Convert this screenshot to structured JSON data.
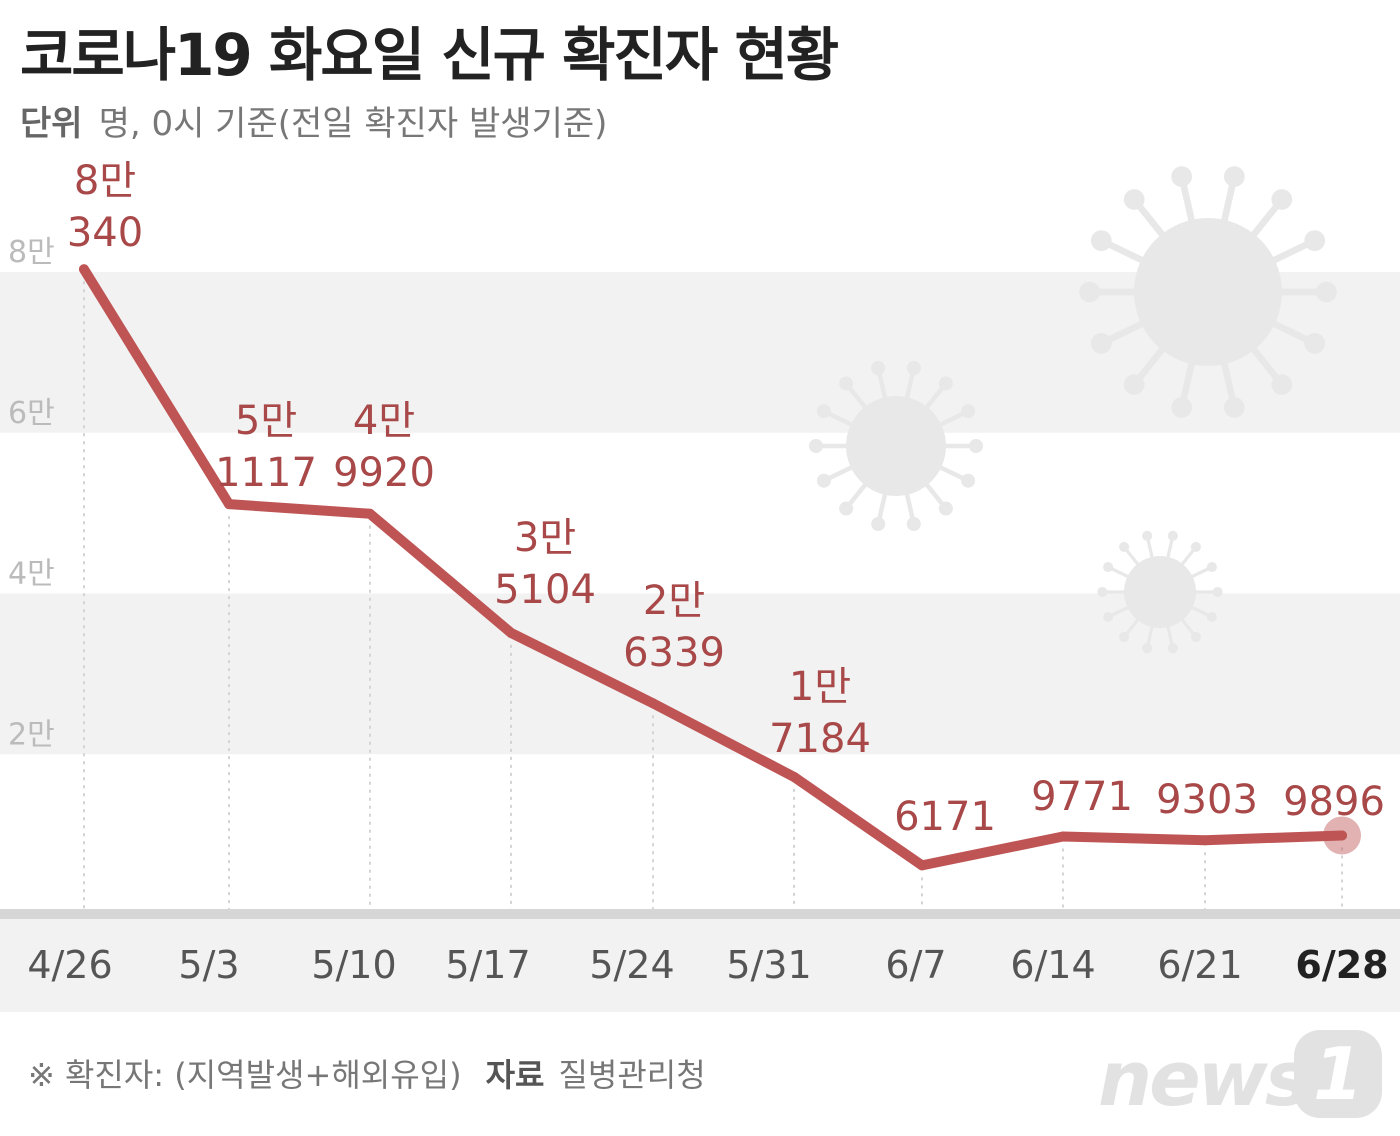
{
  "header": {
    "title": "코로나19 화요일 신규 확진자 현황",
    "unit_label": "단위",
    "unit_text": "명, 0시 기준(전일 확진자 발생기준)"
  },
  "footer": {
    "note": "※ 확진자: (지역발생+해외유입)",
    "source_label": "자료",
    "source": "질병관리청"
  },
  "logo": {
    "text": "news",
    "badge": "1"
  },
  "colors": {
    "line": "#bf5454",
    "label": "#a84848",
    "band": "#f2f2f2",
    "virus": "#e8e8e8"
  },
  "decor": {
    "icons": [
      "virus-icon",
      "virus-icon",
      "virus-icon"
    ]
  },
  "chart_data": {
    "type": "line",
    "categories": [
      "4/26",
      "5/3",
      "5/10",
      "5/17",
      "5/24",
      "5/31",
      "6/7",
      "6/14",
      "6/21",
      "6/28"
    ],
    "values": [
      80340,
      51117,
      49920,
      35104,
      26339,
      17184,
      6171,
      9771,
      9303,
      9896
    ],
    "point_labels": [
      [
        "8만",
        "340"
      ],
      [
        "5만",
        "1117"
      ],
      [
        "4만",
        "9920"
      ],
      [
        "3만",
        "5104"
      ],
      [
        "2만",
        "6339"
      ],
      [
        "1만",
        "7184"
      ],
      [
        "6171"
      ],
      [
        "9771"
      ],
      [
        "9303"
      ],
      [
        "9896"
      ]
    ],
    "yticks": [
      {
        "value": 20000,
        "label": "2만"
      },
      {
        "value": 40000,
        "label": "4만"
      },
      {
        "value": 60000,
        "label": "6만"
      },
      {
        "value": 80000,
        "label": "8만"
      }
    ],
    "ylim": [
      0,
      80000
    ],
    "highlight_last": true,
    "grid": false
  }
}
